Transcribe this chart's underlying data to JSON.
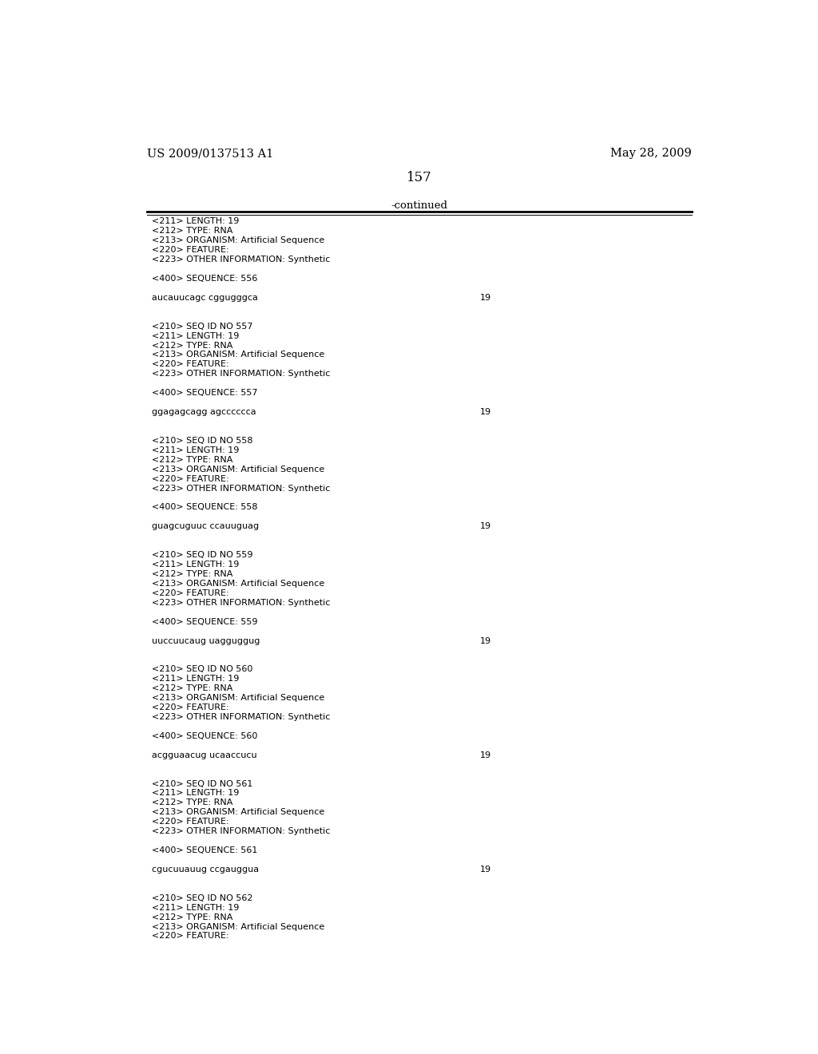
{
  "header_left": "US 2009/0137513 A1",
  "header_right": "May 28, 2009",
  "page_number": "157",
  "continued_label": "-continued",
  "background_color": "#ffffff",
  "text_color": "#000000",
  "font_size_header": 10.5,
  "font_size_page": 12,
  "font_size_continued": 9.5,
  "font_size_body": 8.0,
  "monospace_font": "Courier New",
  "serif_font": "DejaVu Serif",
  "content_lines": [
    "<211> LENGTH: 19",
    "<212> TYPE: RNA",
    "<213> ORGANISM: Artificial Sequence",
    "<220> FEATURE:",
    "<223> OTHER INFORMATION: Synthetic",
    "",
    "<400> SEQUENCE: 556",
    "",
    "aucauucagc cggugggca                                19",
    "",
    "",
    "<210> SEQ ID NO 557",
    "<211> LENGTH: 19",
    "<212> TYPE: RNA",
    "<213> ORGANISM: Artificial Sequence",
    "<220> FEATURE:",
    "<223> OTHER INFORMATION: Synthetic",
    "",
    "<400> SEQUENCE: 557",
    "",
    "ggagagcagg agcccccca                                19",
    "",
    "",
    "<210> SEQ ID NO 558",
    "<211> LENGTH: 19",
    "<212> TYPE: RNA",
    "<213> ORGANISM: Artificial Sequence",
    "<220> FEATURE:",
    "<223> OTHER INFORMATION: Synthetic",
    "",
    "<400> SEQUENCE: 558",
    "",
    "guagcuguuc ccauuguag                                19",
    "",
    "",
    "<210> SEQ ID NO 559",
    "<211> LENGTH: 19",
    "<212> TYPE: RNA",
    "<213> ORGANISM: Artificial Sequence",
    "<220> FEATURE:",
    "<223> OTHER INFORMATION: Synthetic",
    "",
    "<400> SEQUENCE: 559",
    "",
    "uuccuucaug uagguggug                                19",
    "",
    "",
    "<210> SEQ ID NO 560",
    "<211> LENGTH: 19",
    "<212> TYPE: RNA",
    "<213> ORGANISM: Artificial Sequence",
    "<220> FEATURE:",
    "<223> OTHER INFORMATION: Synthetic",
    "",
    "<400> SEQUENCE: 560",
    "",
    "acgguaacug ucaaccucu                                19",
    "",
    "",
    "<210> SEQ ID NO 561",
    "<211> LENGTH: 19",
    "<212> TYPE: RNA",
    "<213> ORGANISM: Artificial Sequence",
    "<220> FEATURE:",
    "<223> OTHER INFORMATION: Synthetic",
    "",
    "<400> SEQUENCE: 561",
    "",
    "cgucuuauug ccgauggua                                19",
    "",
    "",
    "<210> SEQ ID NO 562",
    "<211> LENGTH: 19",
    "<212> TYPE: RNA",
    "<213> ORGANISM: Artificial Sequence",
    "<220> FEATURE:"
  ],
  "seq_lines": [
    "aucauucagc cggugggca                                19",
    "ggagagcagg agcccccca                                19",
    "guagcuguuc ccauuguag                                19",
    "uuccuucaug uagguggug                                19",
    "acgguaacug ucaaccucu                                19",
    "cgucuuauug ccgauggua                                19"
  ]
}
